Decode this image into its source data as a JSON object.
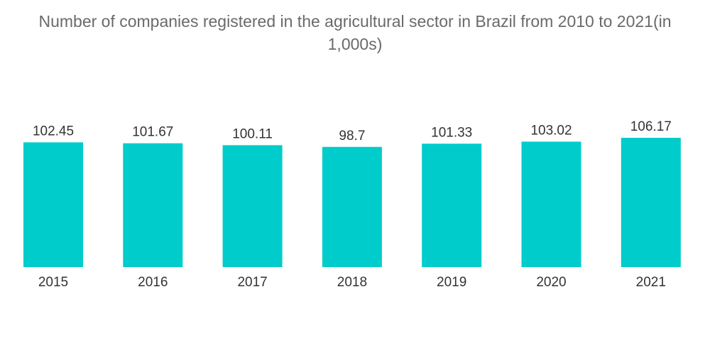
{
  "chart_data": {
    "type": "bar",
    "title": "Number of companies registered in the agricultural sector in Brazil from 2010 to 2021(in 1,000s)",
    "categories": [
      "2015",
      "2016",
      "2017",
      "2018",
      "2019",
      "2020",
      "2021"
    ],
    "values": [
      102.45,
      101.67,
      100.11,
      98.7,
      101.33,
      103.02,
      106.17
    ],
    "value_labels": [
      "102.45",
      "101.67",
      "100.11",
      "98.7",
      "101.33",
      "103.02",
      "106.17"
    ],
    "xlabel": "",
    "ylabel": "",
    "ylim": [
      0,
      106.17
    ],
    "grid": false,
    "legend": "none",
    "bar_color": "#00cccc"
  }
}
